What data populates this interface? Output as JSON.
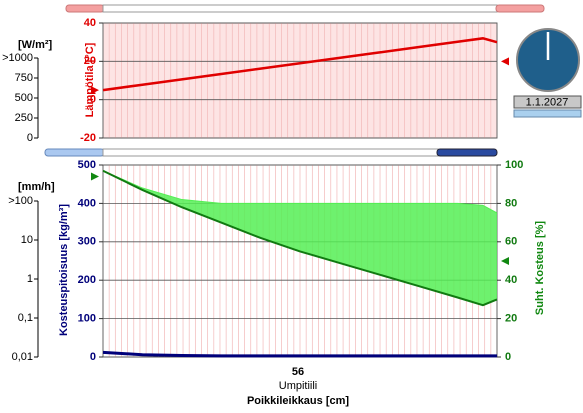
{
  "chart_data": [
    {
      "type": "line",
      "y_label": "Lämpötila [°C]",
      "xlim": [
        0,
        56
      ],
      "ylim": [
        -20,
        40
      ],
      "yticks": [
        -20,
        0,
        20,
        40
      ],
      "grid": true,
      "x": [
        0,
        5.6,
        11.2,
        16.8,
        22.4,
        28,
        33.6,
        39.2,
        44.8,
        50.4,
        54,
        56
      ],
      "series": [
        {
          "color": "#e00000",
          "values": [
            5,
            7.8,
            10.6,
            13.4,
            16.2,
            19,
            21.8,
            24.6,
            27.4,
            30.2,
            32,
            30
          ]
        }
      ],
      "markers": [
        {
          "side": "left",
          "color": "#e00000",
          "value": 5
        },
        {
          "side": "right",
          "color": "#e00000",
          "value": 20
        }
      ],
      "radiation_scale": {
        "label": "[W/m²]",
        "lim": [
          0,
          1000
        ],
        "ticks": [
          0,
          250,
          500,
          750,
          {
            "value": 1000,
            "label": ">1000"
          }
        ]
      }
    },
    {
      "type": "area",
      "y_label": "Kosteuspitoisuus [kg/m³]",
      "y2_label": "Suht. Kosteus [%]",
      "x_label": "Poikkileikkaus [cm]",
      "thickness": 56,
      "material": "Umpitiili",
      "xlim": [
        0,
        56
      ],
      "ylim": [
        0,
        500
      ],
      "yticks": [
        0,
        100,
        200,
        300,
        400,
        500
      ],
      "y2lim": [
        0,
        100
      ],
      "y2ticks": [
        0,
        20,
        40,
        60,
        80,
        100
      ],
      "grid": true,
      "x": [
        0,
        5.6,
        11.2,
        16.8,
        22.4,
        28,
        33.6,
        39.2,
        44.8,
        50.4,
        54,
        56
      ],
      "series": [
        {
          "color": "#00007a",
          "values": [
            12,
            6,
            4,
            3,
            3,
            3,
            3,
            3,
            3,
            3,
            3,
            3
          ]
        },
        {
          "color": "#55ee55",
          "axis": "y2",
          "fill": true,
          "values": [
            97,
            88,
            82,
            80,
            80,
            80,
            80,
            80,
            80,
            80,
            79,
            75
          ]
        },
        {
          "color": "#117a11",
          "axis": "y2",
          "values": [
            97,
            87,
            78,
            70,
            62,
            55,
            49,
            43,
            37,
            31,
            27,
            30
          ]
        }
      ],
      "markers": [
        {
          "side": "left",
          "color": "#118811",
          "axis": "y2",
          "value": 94
        },
        {
          "side": "right",
          "color": "#118811",
          "axis": "y2",
          "value": 50
        }
      ],
      "rain_scale": {
        "label": "[mm/h]",
        "log": true,
        "lim": [
          0.01,
          100
        ],
        "ticks": [
          {
            "value": 0.01,
            "label": "0,01"
          },
          {
            "value": 0.1,
            "label": "0,1"
          },
          1,
          10,
          {
            "value": 100,
            "label": ">100"
          }
        ]
      }
    }
  ],
  "clock": {
    "date": "1.1.2027"
  }
}
